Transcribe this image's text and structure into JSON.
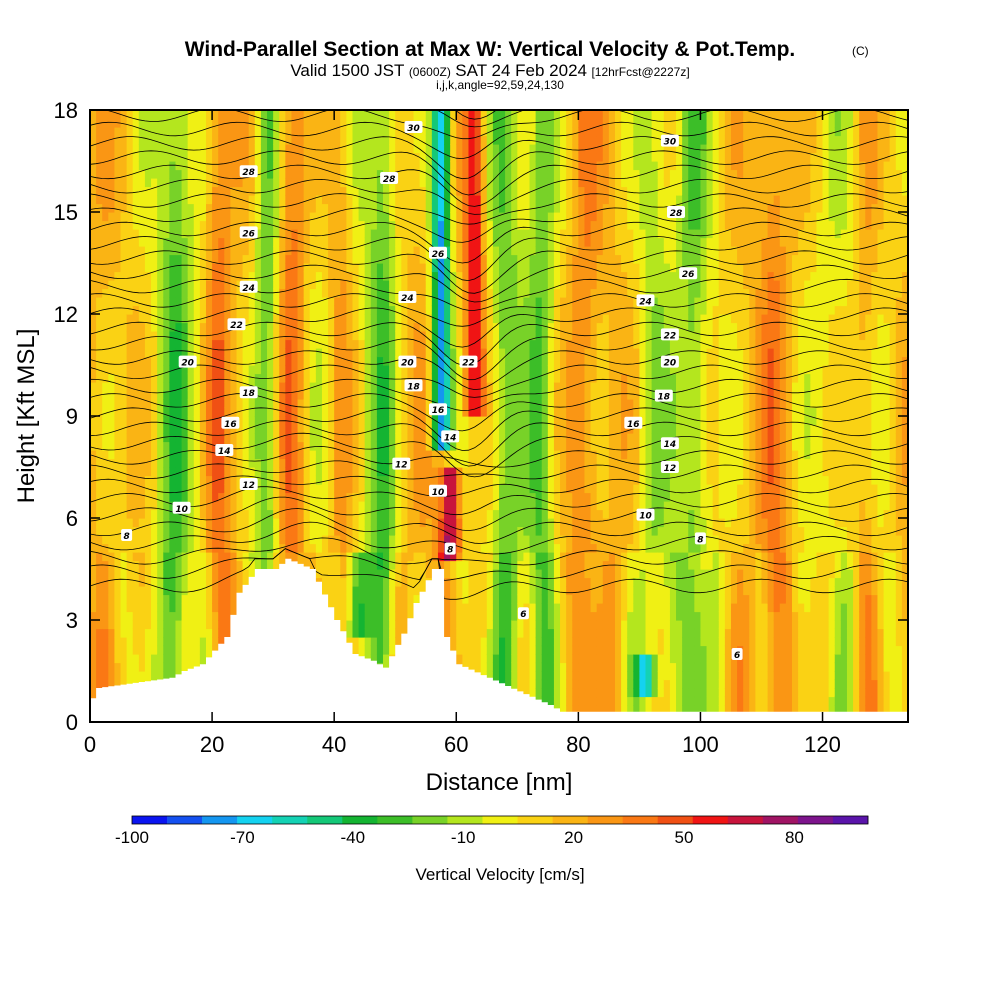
{
  "chart_data": {
    "type": "heatmap",
    "title": "Wind-Parallel Section at Max W: Vertical Velocity & Pot.Temp.",
    "title_tag": "(C)",
    "subtitle_prefix": "Valid 1500 JST",
    "subtitle_utc": "(0600Z)",
    "subtitle_date": "SAT 24 Feb 2024",
    "subtitle_fcst": "[12hrFcst@2227z]",
    "info_line": "i,j,k,angle=92,59,24,130",
    "xlabel": "Distance [nm]",
    "ylabel": "Height [Kft MSL]",
    "xlim": [
      0,
      134
    ],
    "ylim": [
      0,
      18
    ],
    "x_ticks": [
      0,
      20,
      40,
      60,
      80,
      100,
      120
    ],
    "y_ticks": [
      0,
      3,
      6,
      9,
      12,
      15,
      18
    ],
    "colorbar": {
      "label": "Vertical Velocity [cm/s]",
      "tick_labels": [
        "-100",
        "-70",
        "-40",
        "-10",
        "20",
        "50",
        "80"
      ],
      "tick_values": [
        -100,
        -70,
        -40,
        -10,
        20,
        50,
        80
      ],
      "range": [
        -100,
        100
      ],
      "colors": [
        "#0a14f0",
        "#1450f0",
        "#1496f0",
        "#14d2f0",
        "#14d2b4",
        "#14c878",
        "#14b432",
        "#3cbe28",
        "#78d228",
        "#b4e61e",
        "#f0f014",
        "#fad214",
        "#fab414",
        "#fa9614",
        "#fa7814",
        "#f05014",
        "#f01414",
        "#c8143c",
        "#a01464",
        "#7d148c",
        "#5a14aa"
      ]
    },
    "theta_contour_labels": [
      {
        "x": 6,
        "z": 5.5,
        "label": "8"
      },
      {
        "x": 15,
        "z": 6.3,
        "label": "10"
      },
      {
        "x": 26,
        "z": 7.0,
        "label": "12"
      },
      {
        "x": 22,
        "z": 8.0,
        "label": "14"
      },
      {
        "x": 23,
        "z": 8.8,
        "label": "16"
      },
      {
        "x": 26,
        "z": 9.7,
        "label": "18"
      },
      {
        "x": 16,
        "z": 10.6,
        "label": "20"
      },
      {
        "x": 24,
        "z": 11.7,
        "label": "22"
      },
      {
        "x": 26,
        "z": 12.8,
        "label": "24"
      },
      {
        "x": 26,
        "z": 14.4,
        "label": "26"
      },
      {
        "x": 26,
        "z": 16.2,
        "label": "28"
      },
      {
        "x": 53,
        "z": 17.5,
        "label": "30"
      },
      {
        "x": 49,
        "z": 16.0,
        "label": "28"
      },
      {
        "x": 57,
        "z": 13.8,
        "label": "26"
      },
      {
        "x": 52,
        "z": 12.5,
        "label": "24"
      },
      {
        "x": 52,
        "z": 10.6,
        "label": "20"
      },
      {
        "x": 53,
        "z": 9.9,
        "label": "18"
      },
      {
        "x": 57,
        "z": 9.2,
        "label": "16"
      },
      {
        "x": 59,
        "z": 8.4,
        "label": "14"
      },
      {
        "x": 51,
        "z": 7.6,
        "label": "12"
      },
      {
        "x": 57,
        "z": 6.8,
        "label": "10"
      },
      {
        "x": 59,
        "z": 5.1,
        "label": "8"
      },
      {
        "x": 71,
        "z": 3.2,
        "label": "6"
      },
      {
        "x": 62,
        "z": 10.6,
        "label": "22"
      },
      {
        "x": 95,
        "z": 17.1,
        "label": "30"
      },
      {
        "x": 96,
        "z": 15.0,
        "label": "28"
      },
      {
        "x": 98,
        "z": 13.2,
        "label": "26"
      },
      {
        "x": 91,
        "z": 12.4,
        "label": "24"
      },
      {
        "x": 95,
        "z": 11.4,
        "label": "22"
      },
      {
        "x": 95,
        "z": 10.6,
        "label": "20"
      },
      {
        "x": 94,
        "z": 9.6,
        "label": "18"
      },
      {
        "x": 89,
        "z": 8.8,
        "label": "16"
      },
      {
        "x": 95,
        "z": 8.2,
        "label": "14"
      },
      {
        "x": 95,
        "z": 7.5,
        "label": "12"
      },
      {
        "x": 91,
        "z": 6.1,
        "label": "10"
      },
      {
        "x": 100,
        "z": 5.4,
        "label": "8"
      },
      {
        "x": 106,
        "z": 2.0,
        "label": "6"
      }
    ],
    "terrain_profile": [
      [
        0,
        0.7
      ],
      [
        1,
        1.0
      ],
      [
        13,
        1.3
      ],
      [
        15,
        1.5
      ],
      [
        18,
        1.7
      ],
      [
        22,
        2.5
      ],
      [
        24,
        3.8
      ],
      [
        27,
        4.5
      ],
      [
        30,
        4.5
      ],
      [
        32,
        4.8
      ],
      [
        36,
        4.5
      ],
      [
        40,
        3.0
      ],
      [
        43,
        2.0
      ],
      [
        46,
        1.8
      ],
      [
        48,
        1.6
      ],
      [
        51,
        2.6
      ],
      [
        53,
        3.5
      ],
      [
        56,
        4.5
      ],
      [
        57,
        4.5
      ],
      [
        58,
        2.5
      ],
      [
        60,
        1.7
      ],
      [
        65,
        1.3
      ],
      [
        70,
        0.9
      ],
      [
        75,
        0.5
      ],
      [
        77,
        0.3
      ],
      [
        134,
        0.3
      ]
    ],
    "w_features": [
      {
        "x": 57.5,
        "z0": 8.0,
        "z1": 18,
        "w": -90
      },
      {
        "x": 59,
        "z0": 4.8,
        "z1": 7.5,
        "w": 65
      },
      {
        "x": 63,
        "z0": 9.0,
        "z1": 18,
        "w": 55
      },
      {
        "x": 44,
        "z0": 2.5,
        "z1": 5.0,
        "w": -40
      },
      {
        "x": 91,
        "z0": 0.8,
        "z1": 2.0,
        "w": -60
      }
    ]
  }
}
